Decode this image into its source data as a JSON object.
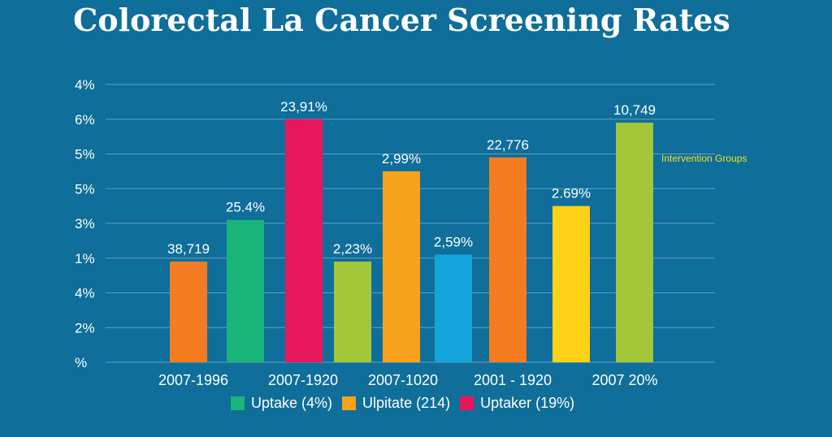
{
  "chart_data": {
    "type": "bar",
    "title": "Colorectal La Cancer Screening Rates",
    "xlabel": "",
    "ylabel": "",
    "grid": true,
    "legend_position": "bottom",
    "y_tick_labels": [
      "%",
      "2%",
      "4%",
      "1%",
      "3%",
      "5%",
      "5%",
      "6%",
      "4%"
    ],
    "ylim": [
      0,
      8
    ],
    "categories": [
      "2007-1996",
      "2007-1920",
      "2007-1020",
      "2001 - 1920",
      "2007 20%"
    ],
    "bars": [
      {
        "category": 0,
        "value": 2.9,
        "color": "#f47c20",
        "label": "38,719"
      },
      {
        "category": 0,
        "value": 4.1,
        "color": "#19b57a",
        "label": "25.4%"
      },
      {
        "category": 1,
        "value": 7.0,
        "color": "#e8175d",
        "label": "23,91%"
      },
      {
        "category": 1,
        "value": 2.9,
        "color": "#a4c639",
        "label": "2,23%"
      },
      {
        "category": 2,
        "value": 5.5,
        "color": "#f7a21b",
        "label": "2,99%"
      },
      {
        "category": 2,
        "value": 3.1,
        "color": "#14a5dc",
        "label": "2,59%"
      },
      {
        "category": 3,
        "value": 5.9,
        "color": "#f47c20",
        "label": "22,776"
      },
      {
        "category": 3,
        "value": 4.5,
        "color": "#fcd116",
        "label": "2.69%"
      },
      {
        "category": 4,
        "value": 6.9,
        "color": "#a4c639",
        "label": "10,749"
      }
    ],
    "annotations": [
      {
        "text": "Intervention Groups"
      }
    ],
    "legend": [
      {
        "label": "Uptake (4%)",
        "color": "#19b57a"
      },
      {
        "label": "Ulpitate (214)",
        "color": "#f7a21b"
      },
      {
        "label": "Uptaker (19%)",
        "color": "#e8175d"
      }
    ]
  }
}
